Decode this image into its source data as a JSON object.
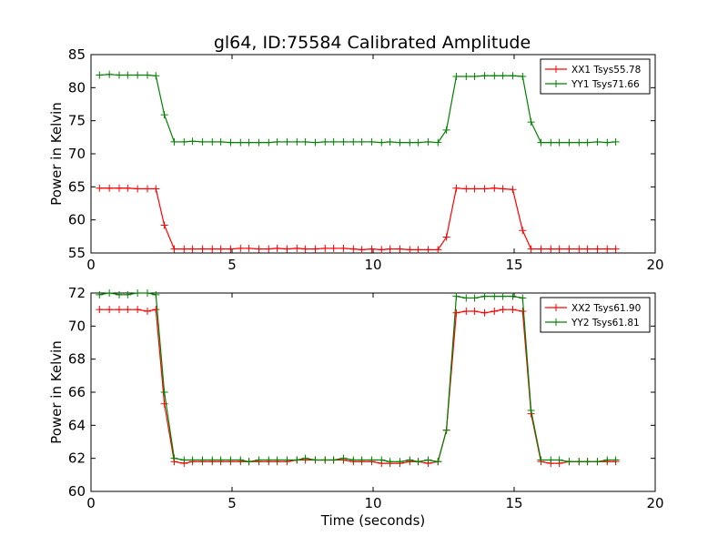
{
  "figure": {
    "title": "gl64, ID:75584 Calibrated Amplitude",
    "xlabel": "Time (seconds)"
  },
  "chart_data": [
    {
      "type": "line",
      "title": "gl64, ID:75584 Calibrated Amplitude",
      "xlabel": "",
      "ylabel": "Power in Kelvin",
      "xlim": [
        0,
        20
      ],
      "ylim": [
        55,
        85
      ],
      "xticks": [
        0,
        5,
        10,
        15,
        20
      ],
      "yticks": [
        55,
        60,
        65,
        70,
        75,
        80,
        85
      ],
      "grid": false,
      "legend_position": "top-right",
      "x": [
        0.3,
        0.65,
        1.0,
        1.3,
        1.65,
        2.0,
        2.3,
        2.6,
        2.95,
        3.3,
        3.6,
        3.95,
        4.3,
        4.6,
        4.95,
        5.3,
        5.6,
        5.95,
        6.3,
        6.6,
        6.95,
        7.3,
        7.6,
        7.95,
        8.3,
        8.6,
        8.95,
        9.3,
        9.6,
        9.95,
        10.3,
        10.6,
        10.95,
        11.3,
        11.6,
        11.95,
        12.3,
        12.6,
        12.95,
        13.3,
        13.6,
        13.95,
        14.3,
        14.6,
        14.95,
        15.3,
        15.6,
        15.95,
        16.3,
        16.6,
        16.95,
        17.3,
        17.6,
        17.95,
        18.3,
        18.6
      ],
      "series": [
        {
          "name": "XX1 Tsys55.78",
          "color": "#ff0000",
          "values": [
            64.8,
            64.8,
            64.8,
            64.8,
            64.7,
            64.7,
            64.7,
            59.2,
            55.6,
            55.6,
            55.6,
            55.6,
            55.6,
            55.6,
            55.6,
            55.7,
            55.7,
            55.6,
            55.6,
            55.7,
            55.6,
            55.7,
            55.6,
            55.6,
            55.7,
            55.7,
            55.7,
            55.6,
            55.5,
            55.6,
            55.5,
            55.6,
            55.6,
            55.5,
            55.5,
            55.5,
            55.5,
            57.4,
            64.8,
            64.7,
            64.7,
            64.7,
            64.8,
            64.7,
            64.6,
            58.4,
            55.6,
            55.6,
            55.6,
            55.6,
            55.6,
            55.6,
            55.6,
            55.6,
            55.6,
            55.6
          ]
        },
        {
          "name": "YY1 Tsys71.66",
          "color": "#008000",
          "values": [
            81.9,
            82.0,
            81.9,
            81.9,
            81.9,
            81.9,
            81.8,
            75.9,
            71.8,
            71.8,
            71.9,
            71.8,
            71.8,
            71.8,
            71.7,
            71.7,
            71.7,
            71.7,
            71.7,
            71.8,
            71.8,
            71.8,
            71.8,
            71.7,
            71.8,
            71.8,
            71.8,
            71.8,
            71.8,
            71.8,
            71.7,
            71.8,
            71.7,
            71.7,
            71.7,
            71.8,
            71.7,
            73.6,
            81.7,
            81.7,
            81.7,
            81.8,
            81.8,
            81.8,
            81.8,
            81.7,
            74.8,
            71.7,
            71.7,
            71.7,
            71.7,
            71.7,
            71.7,
            71.8,
            71.7,
            71.8
          ]
        }
      ]
    },
    {
      "type": "line",
      "title": "",
      "xlabel": "Time (seconds)",
      "ylabel": "Power in Kelvin",
      "xlim": [
        0,
        20
      ],
      "ylim": [
        60,
        72
      ],
      "xticks": [
        0,
        5,
        10,
        15,
        20
      ],
      "yticks": [
        60,
        62,
        64,
        66,
        68,
        70,
        72
      ],
      "grid": false,
      "legend_position": "top-right",
      "x": [
        0.3,
        0.65,
        1.0,
        1.3,
        1.65,
        2.0,
        2.3,
        2.6,
        2.95,
        3.3,
        3.6,
        3.95,
        4.3,
        4.6,
        4.95,
        5.3,
        5.6,
        5.95,
        6.3,
        6.6,
        6.95,
        7.3,
        7.6,
        7.95,
        8.3,
        8.6,
        8.95,
        9.3,
        9.6,
        9.95,
        10.3,
        10.6,
        10.95,
        11.3,
        11.6,
        11.95,
        12.3,
        12.6,
        12.95,
        13.3,
        13.6,
        13.95,
        14.3,
        14.6,
        14.95,
        15.3,
        15.6,
        15.95,
        16.3,
        16.6,
        16.95,
        17.3,
        17.6,
        17.95,
        18.3,
        18.6
      ],
      "series": [
        {
          "name": "XX2 Tsys61.90",
          "color": "#ff0000",
          "values": [
            71.0,
            71.0,
            71.0,
            71.0,
            71.0,
            70.9,
            71.0,
            65.3,
            61.8,
            61.7,
            61.8,
            61.8,
            61.8,
            61.8,
            61.8,
            61.8,
            61.8,
            61.8,
            61.8,
            61.8,
            61.8,
            61.9,
            61.9,
            61.9,
            61.9,
            61.9,
            61.9,
            61.8,
            61.8,
            61.8,
            61.7,
            61.7,
            61.7,
            61.8,
            61.8,
            61.7,
            61.8,
            63.7,
            70.8,
            70.9,
            70.9,
            70.8,
            70.9,
            71.0,
            71.0,
            70.9,
            64.7,
            61.8,
            61.7,
            61.7,
            61.8,
            61.8,
            61.8,
            61.8,
            61.8,
            61.8
          ]
        },
        {
          "name": "YY2 Tsys61.81",
          "color": "#008000",
          "values": [
            71.9,
            72.0,
            71.9,
            71.9,
            72.0,
            72.0,
            71.9,
            66.0,
            62.0,
            61.9,
            61.9,
            61.9,
            61.9,
            61.9,
            61.9,
            61.9,
            61.8,
            61.9,
            61.9,
            61.9,
            61.9,
            61.9,
            62.0,
            61.9,
            61.9,
            61.9,
            62.0,
            61.9,
            61.9,
            61.9,
            61.9,
            61.8,
            61.8,
            61.9,
            61.8,
            61.9,
            61.8,
            63.7,
            71.8,
            71.7,
            71.7,
            71.8,
            71.8,
            71.8,
            71.8,
            71.7,
            64.9,
            61.9,
            61.9,
            61.9,
            61.8,
            61.8,
            61.8,
            61.8,
            61.9,
            61.9
          ]
        }
      ]
    }
  ]
}
